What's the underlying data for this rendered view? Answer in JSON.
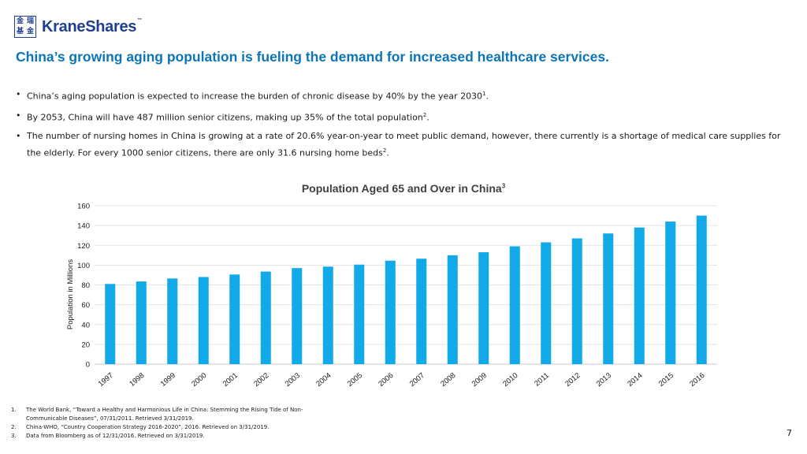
{
  "logo": {
    "cjk": [
      "金",
      "瑞",
      "基",
      "金"
    ],
    "name": "KraneShares",
    "tm": "™"
  },
  "headline": "China’s growing aging population is fueling the demand for increased healthcare services.",
  "bullets": [
    {
      "text": "China’s aging population is expected to increase the burden of chronic disease by 40% by the year 2030",
      "ref": "1",
      "end": "."
    },
    {
      "text": "By 2053, China will have 487 million senior citizens, making up 35% of the total population",
      "ref": "2",
      "end": "."
    },
    {
      "text": "The number of nursing homes in China is growing at a rate of 20.6% year-on-year to meet public demand, however, there currently is a shortage of medical care supplies for the elderly. For every 1000 senior citizens, there are only 31.6 nursing home beds",
      "ref": "2",
      "end": "."
    }
  ],
  "chart_data": {
    "type": "bar",
    "title": "Population Aged 65 and Over in China",
    "title_ref": "3",
    "xlabel": "",
    "ylabel": "Population in Millions",
    "ylim": [
      0,
      160
    ],
    "yticks": [
      0,
      20,
      40,
      60,
      80,
      100,
      120,
      140,
      160
    ],
    "grid": true,
    "color": "#12a9e9",
    "categories": [
      "1997",
      "1998",
      "1999",
      "2000",
      "2001",
      "2002",
      "2003",
      "2004",
      "2005",
      "2006",
      "2007",
      "2008",
      "2009",
      "2010",
      "2011",
      "2012",
      "2013",
      "2014",
      "2015",
      "2016"
    ],
    "values": [
      81,
      83.5,
      86.5,
      88,
      90.5,
      93.5,
      97,
      98.5,
      100.5,
      104.5,
      106.5,
      110,
      113,
      119,
      123,
      127,
      132,
      138,
      144,
      150
    ]
  },
  "footnotes": [
    {
      "num": "1.",
      "text": "The World Bank, “Toward a Healthy and Harmonious Life in China: Stemming the Rising Tide of Non-Communicable Diseases”, 07/31/2011. Retrieved 3/31/2019."
    },
    {
      "num": "2.",
      "text": "China-WHO, “Country Cooperation Strategy 2016-2020”, 2016. Retrieved on 3/31/2019."
    },
    {
      "num": "3.",
      "text": "Data from Bloomberg as of 12/31/2016. Retrieved on 3/31/2019."
    }
  ],
  "page_number": "7"
}
